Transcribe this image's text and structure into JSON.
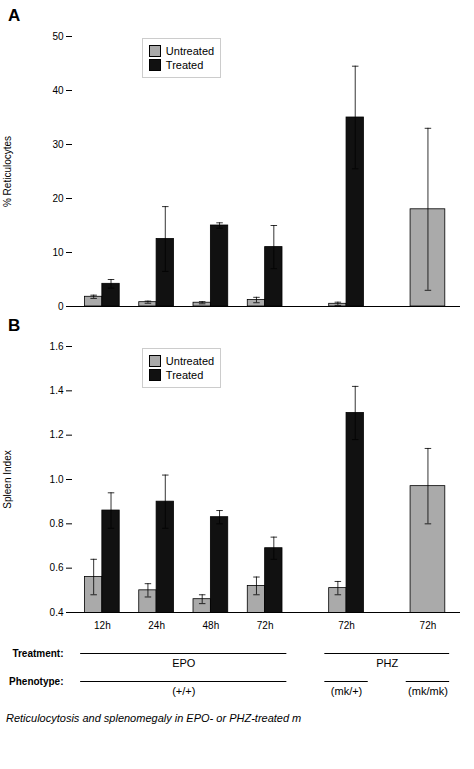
{
  "chart_data": [
    {
      "type": "bar",
      "title": "A",
      "categories": [
        null,
        null,
        null,
        null,
        null,
        null
      ],
      "series": [
        {
          "name": "Untreated",
          "color": "#aaaaaa",
          "values": [
            1.8,
            0.8,
            0.7,
            1.2,
            0.5,
            18.0
          ],
          "errors": [
            0.3,
            0.2,
            0.2,
            0.5,
            0.3,
            15.0
          ]
        },
        {
          "name": "Treated",
          "color": "#111111",
          "values": [
            4.2,
            12.5,
            15.0,
            11.0,
            35.0,
            null
          ],
          "errors": [
            0.8,
            6.0,
            0.5,
            4.0,
            9.5,
            null
          ]
        }
      ],
      "ylabel": "% Reticulocytes",
      "ylim": [
        0,
        50
      ],
      "yticks": [
        0,
        10,
        20,
        30,
        40,
        50
      ],
      "legend": "upper left",
      "tick_labels": "y"
    },
    {
      "type": "bar",
      "title": "B",
      "categories": [
        "12h",
        "24h",
        "48h",
        "72h",
        "72h",
        "72h"
      ],
      "series": [
        {
          "name": "Untreated",
          "color": "#aaaaaa",
          "values": [
            0.56,
            0.5,
            0.46,
            0.52,
            0.51,
            0.97
          ],
          "errors": [
            0.08,
            0.03,
            0.02,
            0.04,
            0.03,
            0.17
          ]
        },
        {
          "name": "Treated",
          "color": "#111111",
          "values": [
            0.86,
            0.9,
            0.83,
            0.69,
            1.3,
            null
          ],
          "errors": [
            0.08,
            0.12,
            0.03,
            0.05,
            0.12,
            null
          ]
        }
      ],
      "ylabel": "Spleen Index",
      "ylim": [
        0.4,
        1.6
      ],
      "yticks": [
        0.4,
        0.6,
        0.8,
        {
          "value": 1.0,
          "label": "1.0"
        },
        1.2,
        1.4,
        1.6
      ],
      "legend": "upper left",
      "annotations": [
        {
          "text": "Treatment:",
          "groups": [
            {
              "text": "EPO",
              "first": 0,
              "last": 3
            },
            {
              "text": "PHZ",
              "first": 4,
              "last": 5
            }
          ]
        },
        {
          "text": "Phenotype:",
          "groups": [
            {
              "text": "(+/+)",
              "first": 0,
              "last": 3
            },
            {
              "text": "(mk/+)",
              "first": 4,
              "last": 4
            },
            {
              "text": "(mk/mk)",
              "first": 5,
              "last": 5
            }
          ]
        }
      ],
      "caption": "Reticulocytosis and splenomegaly in EPO- or PHZ-treated m"
    }
  ]
}
